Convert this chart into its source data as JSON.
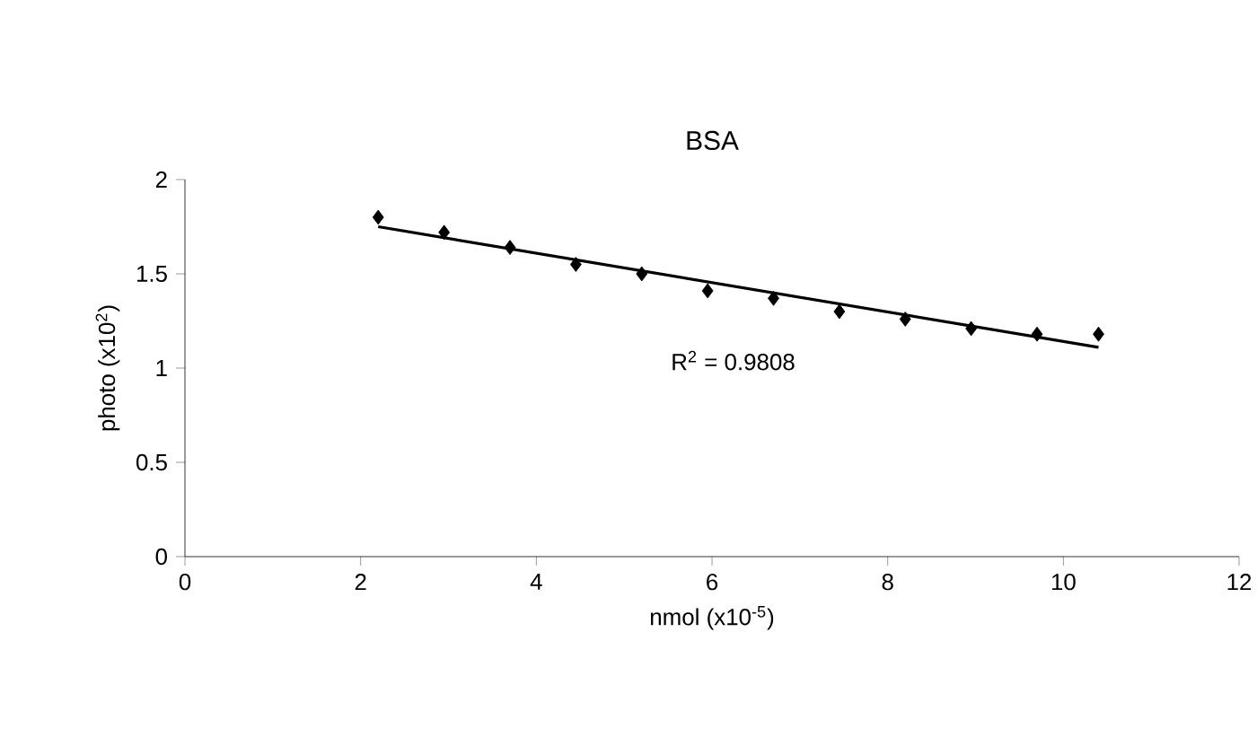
{
  "chart_data": {
    "type": "scatter",
    "title": "BSA",
    "xlabel": "nmol (x10$^{-5}$)",
    "ylabel": "photo (x10$^{2}$)",
    "annotations": [
      "R$^{2}$ = 0.9808"
    ],
    "xlim": [
      0,
      12
    ],
    "ylim": [
      0,
      2
    ],
    "xticks": [
      0,
      2,
      4,
      6,
      8,
      10,
      12
    ],
    "yticks": [
      0,
      0.5,
      1,
      1.5,
      2
    ],
    "grid": false,
    "marker": "diamond",
    "series": [
      {
        "color": "#000000",
        "x": [
          2.2,
          2.95,
          3.7,
          4.45,
          5.2,
          5.95,
          6.7,
          7.45,
          8.2,
          8.95,
          9.7,
          10.4
        ],
        "values": [
          1.8,
          1.72,
          1.64,
          1.55,
          1.5,
          1.41,
          1.37,
          1.3,
          1.26,
          1.21,
          1.18,
          1.18
        ]
      },
      {
        "type": "line",
        "color": "#000000",
        "line_style": "solid",
        "marker": "none",
        "x": [
          2.2,
          10.4
        ],
        "values": [
          1.75,
          1.11
        ]
      }
    ]
  }
}
